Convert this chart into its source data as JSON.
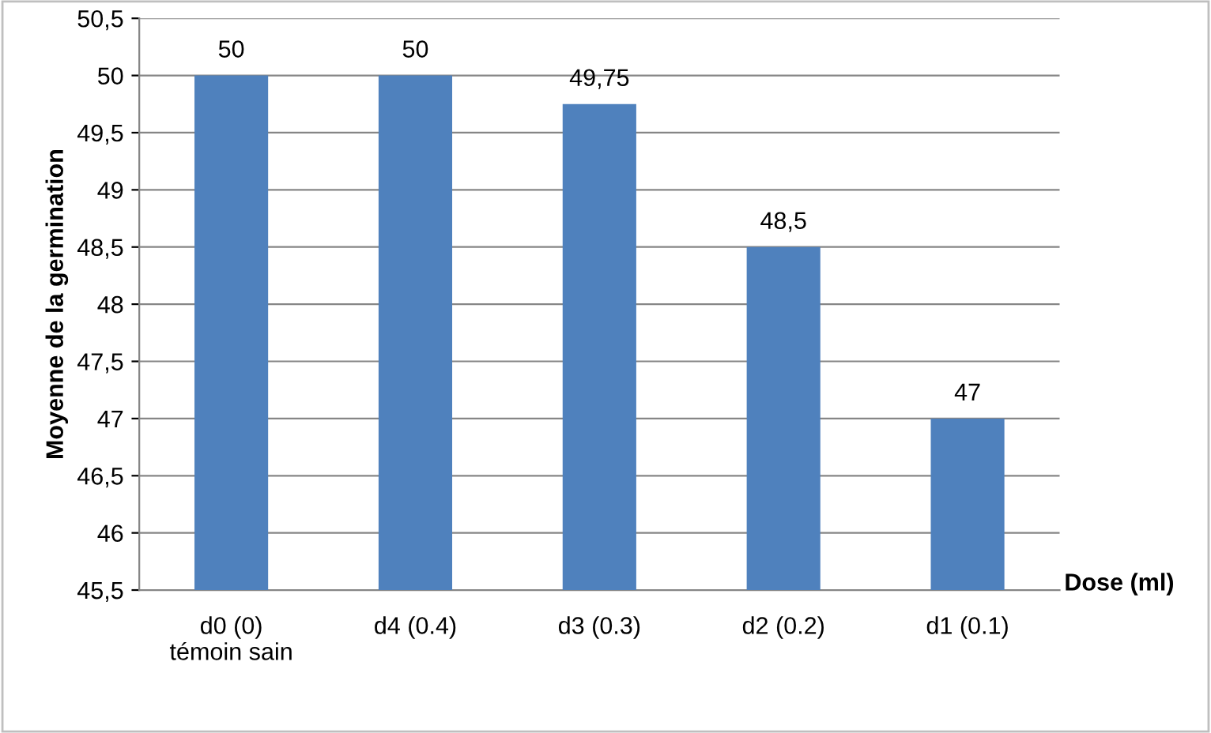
{
  "chart_data": {
    "type": "bar",
    "categories": [
      "d0 (0)\ntémoin sain",
      "d4 (0.4)",
      "d3 (0.3)",
      "d2 (0.2)",
      "d1 (0.1)"
    ],
    "values": [
      50,
      50,
      49.75,
      48.5,
      47
    ],
    "value_labels": [
      "50",
      "50",
      "49,75",
      "48,5",
      "47"
    ],
    "color": "#4f81bd",
    "ylabel": "Moyenne de la germination",
    "xlabel": "Dose (ml)",
    "ylim": [
      45.5,
      50.5
    ],
    "yticks": [
      {
        "value": 45.5,
        "label": "45,5"
      },
      46,
      {
        "value": 46.5,
        "label": "46,5"
      },
      47,
      {
        "value": 47.5,
        "label": "47,5"
      },
      48,
      {
        "value": 48.5,
        "label": "48,5"
      },
      49,
      {
        "value": 49.5,
        "label": "49,5"
      },
      50,
      {
        "value": 50.5,
        "label": "50,5"
      }
    ],
    "grid": "y",
    "legend": false
  }
}
